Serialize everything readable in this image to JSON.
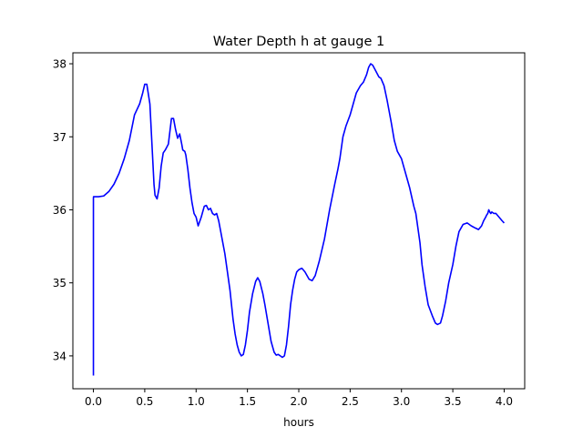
{
  "chart_data": {
    "type": "line",
    "title": "Water Depth h at gauge 1",
    "xlabel": "hours",
    "ylabel": "",
    "xlim": [
      -0.2,
      4.2
    ],
    "ylim": [
      33.55,
      38.15
    ],
    "xticks": [
      0.0,
      0.5,
      1.0,
      1.5,
      2.0,
      2.5,
      3.0,
      3.5,
      4.0
    ],
    "xtick_labels": [
      "0.0",
      "0.5",
      "1.0",
      "1.5",
      "2.0",
      "2.5",
      "3.0",
      "3.5",
      "4.0"
    ],
    "yticks": [
      34,
      35,
      36,
      37,
      38
    ],
    "ytick_labels": [
      "34",
      "35",
      "36",
      "37",
      "38"
    ],
    "grid": false,
    "legend": "none",
    "series": [
      {
        "color": "#0000ff",
        "x": [
          0.0,
          0.0,
          0.0,
          0.001,
          0.02,
          0.05,
          0.1,
          0.15,
          0.2,
          0.25,
          0.3,
          0.35,
          0.4,
          0.45,
          0.48,
          0.5,
          0.52,
          0.55,
          0.57,
          0.59,
          0.6,
          0.62,
          0.64,
          0.66,
          0.68,
          0.7,
          0.73,
          0.76,
          0.78,
          0.8,
          0.82,
          0.84,
          0.86,
          0.87,
          0.89,
          0.9,
          0.92,
          0.94,
          0.96,
          0.98,
          1.0,
          1.02,
          1.05,
          1.08,
          1.1,
          1.12,
          1.14,
          1.16,
          1.18,
          1.2,
          1.22,
          1.24,
          1.26,
          1.28,
          1.3,
          1.33,
          1.36,
          1.38,
          1.4,
          1.42,
          1.44,
          1.46,
          1.48,
          1.5,
          1.52,
          1.55,
          1.58,
          1.6,
          1.62,
          1.65,
          1.67,
          1.7,
          1.73,
          1.76,
          1.78,
          1.8,
          1.82,
          1.84,
          1.86,
          1.88,
          1.9,
          1.92,
          1.94,
          1.96,
          1.98,
          2.0,
          2.03,
          2.06,
          2.1,
          2.13,
          2.16,
          2.2,
          2.25,
          2.3,
          2.35,
          2.38,
          2.4,
          2.43,
          2.46,
          2.5,
          2.53,
          2.56,
          2.6,
          2.63,
          2.66,
          2.68,
          2.7,
          2.72,
          2.75,
          2.78,
          2.8,
          2.83,
          2.86,
          2.9,
          2.93,
          2.96,
          3.0,
          3.04,
          3.08,
          3.12,
          3.14,
          3.15,
          3.18,
          3.2,
          3.23,
          3.26,
          3.3,
          3.33,
          3.35,
          3.38,
          3.4,
          3.43,
          3.46,
          3.5,
          3.53,
          3.56,
          3.6,
          3.64,
          3.68,
          3.72,
          3.75,
          3.78,
          3.8,
          3.82,
          3.83,
          3.84,
          3.85,
          3.86,
          3.87,
          3.88,
          3.9,
          3.92,
          3.95,
          3.98,
          4.0
        ],
        "y": [
          33.73,
          35.0,
          36.15,
          36.18,
          36.18,
          36.18,
          36.19,
          36.25,
          36.35,
          36.5,
          36.7,
          36.95,
          37.3,
          37.45,
          37.6,
          37.72,
          37.72,
          37.45,
          36.9,
          36.35,
          36.2,
          36.15,
          36.3,
          36.6,
          36.78,
          36.82,
          36.9,
          37.25,
          37.25,
          37.1,
          36.98,
          37.04,
          36.9,
          36.82,
          36.8,
          36.75,
          36.55,
          36.3,
          36.1,
          35.95,
          35.9,
          35.78,
          35.9,
          36.05,
          36.06,
          36.0,
          36.02,
          35.95,
          35.93,
          35.95,
          35.85,
          35.7,
          35.55,
          35.4,
          35.2,
          34.9,
          34.5,
          34.3,
          34.15,
          34.05,
          34.0,
          34.02,
          34.15,
          34.35,
          34.6,
          34.85,
          35.02,
          35.07,
          35.02,
          34.85,
          34.7,
          34.45,
          34.2,
          34.05,
          34.01,
          34.02,
          34.0,
          33.98,
          34.0,
          34.15,
          34.4,
          34.7,
          34.9,
          35.05,
          35.15,
          35.18,
          35.2,
          35.15,
          35.05,
          35.03,
          35.1,
          35.3,
          35.6,
          36.0,
          36.35,
          36.55,
          36.7,
          37.0,
          37.15,
          37.3,
          37.45,
          37.6,
          37.7,
          37.75,
          37.85,
          37.95,
          38.0,
          37.98,
          37.9,
          37.82,
          37.8,
          37.7,
          37.5,
          37.2,
          36.95,
          36.8,
          36.7,
          36.5,
          36.3,
          36.05,
          35.95,
          35.85,
          35.55,
          35.25,
          34.95,
          34.7,
          34.55,
          34.45,
          34.43,
          34.45,
          34.55,
          34.75,
          35.0,
          35.25,
          35.5,
          35.7,
          35.8,
          35.82,
          35.78,
          35.75,
          35.73,
          35.78,
          35.85,
          35.9,
          35.93,
          35.95,
          36.0,
          35.97,
          35.95,
          35.97,
          35.95,
          35.95,
          35.9,
          35.85,
          35.82
        ]
      }
    ]
  }
}
